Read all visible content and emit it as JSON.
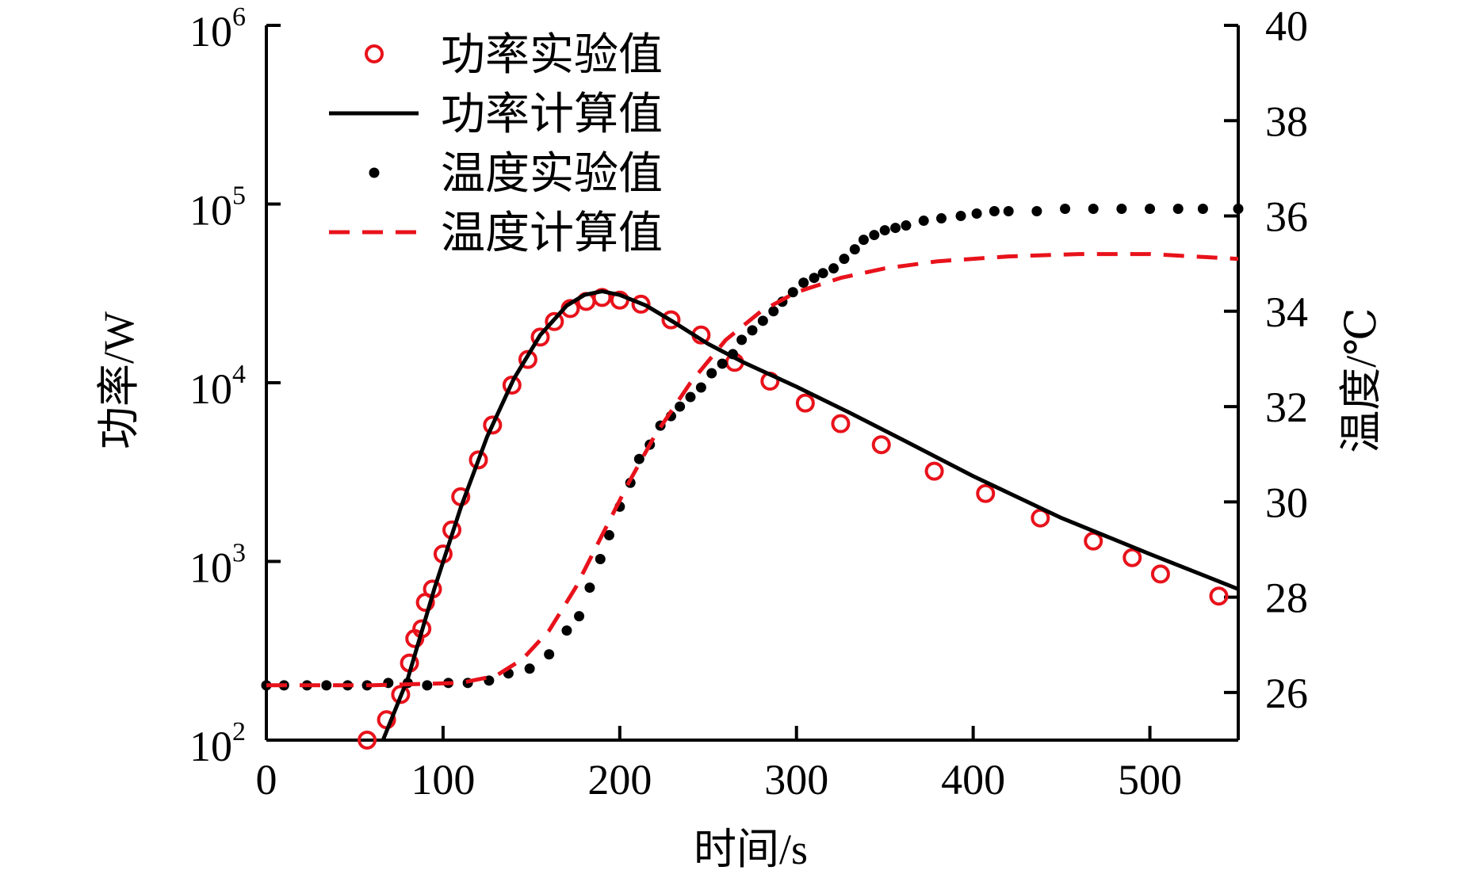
{
  "chart_data": {
    "type": "line",
    "title": "",
    "xlabel": "时间/s",
    "ylabel_left": "功率/W",
    "ylabel_right": "温度/℃",
    "xlim": [
      0,
      550
    ],
    "ylim_left": [
      100,
      1000000
    ],
    "ylim_right": [
      25,
      40
    ],
    "yscale_left": "log",
    "grid": false,
    "legend_position": "top-left",
    "x_ticks": [
      "0",
      "100",
      "200",
      "300",
      "400",
      "500"
    ],
    "x_tick_values": [
      0,
      100,
      200,
      300,
      400,
      500
    ],
    "y_left_ticks": [
      {
        "value": 100,
        "base": "10",
        "exp": "2"
      },
      {
        "value": 1000,
        "base": "10",
        "exp": "3"
      },
      {
        "value": 10000,
        "base": "10",
        "exp": "4"
      },
      {
        "value": 100000,
        "base": "10",
        "exp": "5"
      },
      {
        "value": 1000000,
        "base": "10",
        "exp": "6"
      }
    ],
    "y_right_ticks": [
      "26",
      "28",
      "30",
      "32",
      "34",
      "36",
      "38",
      "40"
    ],
    "y_right_tick_values": [
      26,
      28,
      30,
      32,
      34,
      36,
      38,
      40
    ],
    "series": [
      {
        "name": "功率实验值",
        "axis": "left",
        "style": "open-circle",
        "color": "#e8121b",
        "x": [
          57,
          68,
          76,
          81,
          84,
          88,
          90,
          94,
          100,
          105,
          110,
          120,
          128,
          139,
          148,
          155,
          163,
          172,
          181,
          190,
          200,
          212,
          229,
          246,
          265,
          285,
          305,
          325,
          348,
          378,
          407,
          438,
          468,
          490,
          506,
          539
        ],
        "y": [
          100,
          130,
          180,
          270,
          370,
          420,
          590,
          700,
          1100,
          1500,
          2300,
          3700,
          5800,
          9700,
          13500,
          18000,
          22000,
          26000,
          28500,
          30000,
          29000,
          27500,
          22500,
          18500,
          13000,
          10200,
          7700,
          5900,
          4500,
          3200,
          2400,
          1750,
          1300,
          1050,
          850,
          640
        ]
      },
      {
        "name": "功率计算值",
        "axis": "left",
        "style": "solid",
        "color": "#000000",
        "x": [
          66,
          80,
          95,
          110,
          125,
          140,
          155,
          170,
          180,
          190,
          200,
          215,
          230,
          250,
          270,
          300,
          330,
          360,
          400,
          450,
          500,
          550
        ],
        "y": [
          100,
          220,
          700,
          2000,
          5000,
          10500,
          18500,
          27000,
          31000,
          32500,
          31000,
          27000,
          22000,
          16500,
          13000,
          9500,
          6800,
          4800,
          3000,
          1750,
          1100,
          700
        ]
      },
      {
        "name": "温度实验值",
        "axis": "right",
        "style": "dot",
        "color": "#000000",
        "x": [
          0,
          10,
          23,
          34,
          46,
          57,
          69,
          80,
          91,
          103,
          114,
          126,
          137,
          149,
          160,
          170,
          177,
          183,
          189,
          194,
          200,
          206,
          211,
          217,
          223,
          229,
          234,
          240,
          246,
          252,
          258,
          264,
          269,
          275,
          281,
          287,
          292,
          298,
          304,
          310,
          315,
          321,
          327,
          333,
          338,
          344,
          350,
          356,
          362,
          372,
          382,
          393,
          402,
          412,
          420,
          436,
          452,
          468,
          484,
          500,
          516,
          530,
          550
        ],
        "y": [
          26.15,
          26.15,
          26.15,
          26.15,
          26.15,
          26.15,
          26.2,
          26.2,
          26.15,
          26.2,
          26.2,
          26.25,
          26.4,
          26.5,
          26.8,
          27.3,
          27.6,
          28.2,
          28.8,
          29.3,
          29.9,
          30.4,
          30.9,
          31.2,
          31.6,
          31.8,
          32.0,
          32.2,
          32.4,
          32.7,
          32.9,
          33.1,
          33.4,
          33.6,
          33.8,
          34.0,
          34.2,
          34.4,
          34.6,
          34.7,
          34.8,
          34.9,
          35.1,
          35.3,
          35.5,
          35.6,
          35.7,
          35.75,
          35.8,
          35.9,
          35.95,
          36.0,
          36.05,
          36.1,
          36.1,
          36.1,
          36.15,
          36.15,
          36.15,
          36.15,
          36.15,
          36.15,
          36.15
        ]
      },
      {
        "name": "温度计算值",
        "axis": "right",
        "style": "dashed",
        "color": "#e8121b",
        "x": [
          0,
          60,
          110,
          130,
          145,
          160,
          175,
          190,
          205,
          220,
          240,
          260,
          280,
          300,
          325,
          350,
          380,
          420,
          460,
          500,
          550
        ],
        "y": [
          26.15,
          26.15,
          26.2,
          26.35,
          26.7,
          27.3,
          28.2,
          29.3,
          30.4,
          31.4,
          32.5,
          33.4,
          34.0,
          34.4,
          34.7,
          34.9,
          35.05,
          35.15,
          35.2,
          35.2,
          35.1
        ]
      }
    ]
  }
}
